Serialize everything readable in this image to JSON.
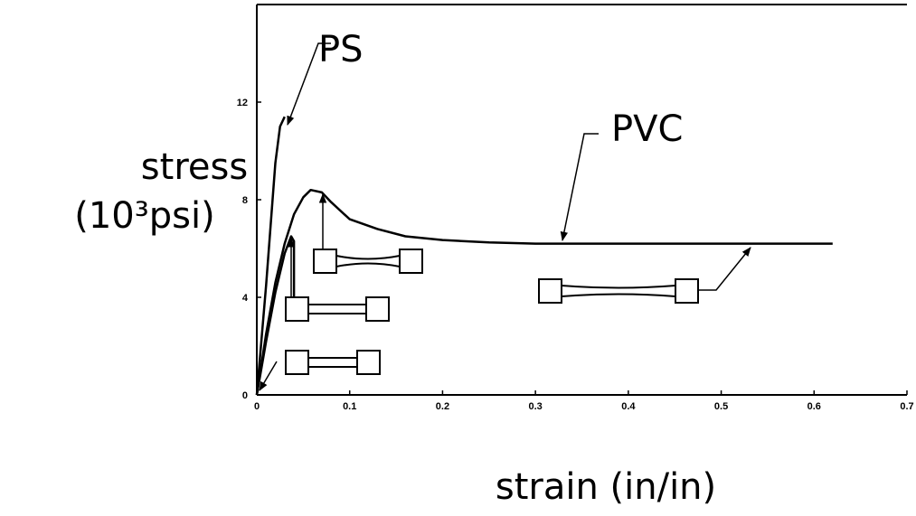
{
  "chart_data": {
    "type": "line",
    "x_label": "strain (in/in)",
    "y_label": [
      "stress",
      "(10³psi)"
    ],
    "xlim": [
      0,
      0.7
    ],
    "xticks": [
      0,
      0.1,
      0.2,
      0.3,
      0.4,
      0.5,
      0.6,
      0.7
    ],
    "ylim": [
      0,
      16
    ],
    "yticks": [
      0,
      4,
      8,
      12
    ],
    "grid": false,
    "series": [
      {
        "name": "PS",
        "color": "#000000",
        "x": [
          0,
          0.01,
          0.02,
          0.025,
          0.03
        ],
        "values": [
          0,
          4.5,
          9.5,
          11,
          11.4
        ]
      },
      {
        "color": "#000000",
        "x": [
          0,
          0.01,
          0.02,
          0.03,
          0.037,
          0.04,
          0.04
        ],
        "values": [
          0,
          2.2,
          4.2,
          5.8,
          6.5,
          6.3,
          3.5
        ]
      },
      {
        "name": "PVC",
        "color": "#000000",
        "x": [
          0,
          0.01,
          0.02,
          0.03,
          0.04,
          0.05,
          0.058,
          0.07,
          0.08,
          0.1,
          0.13,
          0.16,
          0.2,
          0.25,
          0.3,
          0.4,
          0.5,
          0.62
        ],
        "values": [
          0,
          2.5,
          4.6,
          6.2,
          7.4,
          8.1,
          8.4,
          8.3,
          7.9,
          7.2,
          6.8,
          6.5,
          6.35,
          6.25,
          6.2,
          6.2,
          6.2,
          6.2
        ]
      }
    ]
  }
}
